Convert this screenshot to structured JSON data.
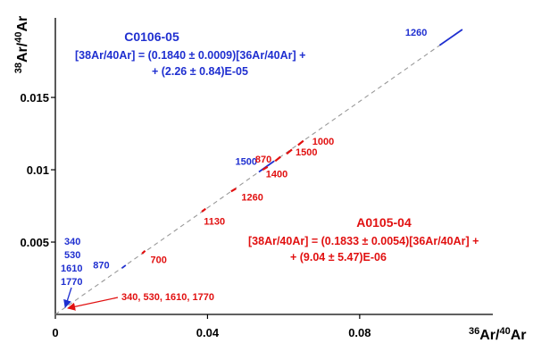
{
  "chart_data": {
    "type": "scatter",
    "title": "",
    "xlabel": "36Ar/40Ar",
    "ylabel": "38Ar/40Ar",
    "xlim": [
      0,
      0.115
    ],
    "ylim": [
      0,
      0.0205
    ],
    "xticks": [
      {
        "value": 0,
        "label": "0"
      },
      {
        "value": 0.04,
        "label": "0.04"
      },
      {
        "value": 0.08,
        "label": "0.08"
      }
    ],
    "yticks": [
      {
        "value": 0.005,
        "label": "0.005"
      },
      {
        "value": 0.01,
        "label": "0.01"
      },
      {
        "value": 0.015,
        "label": "0.015"
      }
    ],
    "grid": false,
    "reference_line": {
      "style": "dashed",
      "color": "#999999",
      "x": [
        0,
        0.107
      ],
      "y": [
        0,
        0.0197
      ]
    },
    "series": [
      {
        "name": "C0106-05",
        "color": "#1f2fd0",
        "equation": [
          "[38Ar/40Ar] = (0.1840 ± 0.0009)[36Ar/40Ar] +",
          "+ (2.26 ± 0.84)E-05"
        ],
        "segments": [
          {
            "label": "1260",
            "x": [
              0.101,
              0.107
            ],
            "y": [
              0.0186,
              0.0197
            ]
          },
          {
            "label": "1500",
            "x": [
              0.0535,
              0.0575
            ],
            "y": [
              0.00985,
              0.0106
            ]
          },
          {
            "label": "870",
            "x": [
              0.0175,
              0.0185
            ],
            "y": [
              0.0032,
              0.0034
            ]
          }
        ],
        "cluster_labels": [
          "340",
          "530",
          "1610",
          "1770"
        ]
      },
      {
        "name": "A0105-04",
        "color": "#e11010",
        "equation": [
          "[38Ar/40Ar] = (0.1833 ± 0.0054)[36Ar/40Ar] +",
          "+ (9.04 ± 5.47)E-06"
        ],
        "segments": [
          {
            "label": "1000",
            "x": [
              0.0638,
              0.0652
            ],
            "y": [
              0.0117,
              0.012
            ]
          },
          {
            "label": "1500",
            "x": [
              0.0608,
              0.0622
            ],
            "y": [
              0.0111,
              0.0114
            ]
          },
          {
            "label": "870",
            "x": [
              0.0578,
              0.0592
            ],
            "y": [
              0.0106,
              0.0109
            ]
          },
          {
            "label": "1400",
            "x": [
              0.0545,
              0.0558
            ],
            "y": [
              0.01,
              0.0102
            ]
          },
          {
            "label": "1260",
            "x": [
              0.0462,
              0.0475
            ],
            "y": [
              0.0085,
              0.0087
            ]
          },
          {
            "label": "1130",
            "x": [
              0.0385,
              0.0395
            ],
            "y": [
              0.0071,
              0.0073
            ]
          },
          {
            "label": "700",
            "x": [
              0.0228,
              0.0236
            ],
            "y": [
              0.0042,
              0.0044
            ]
          }
        ],
        "cluster_labels": [
          "340, 530, 1610, 1770"
        ]
      }
    ]
  }
}
